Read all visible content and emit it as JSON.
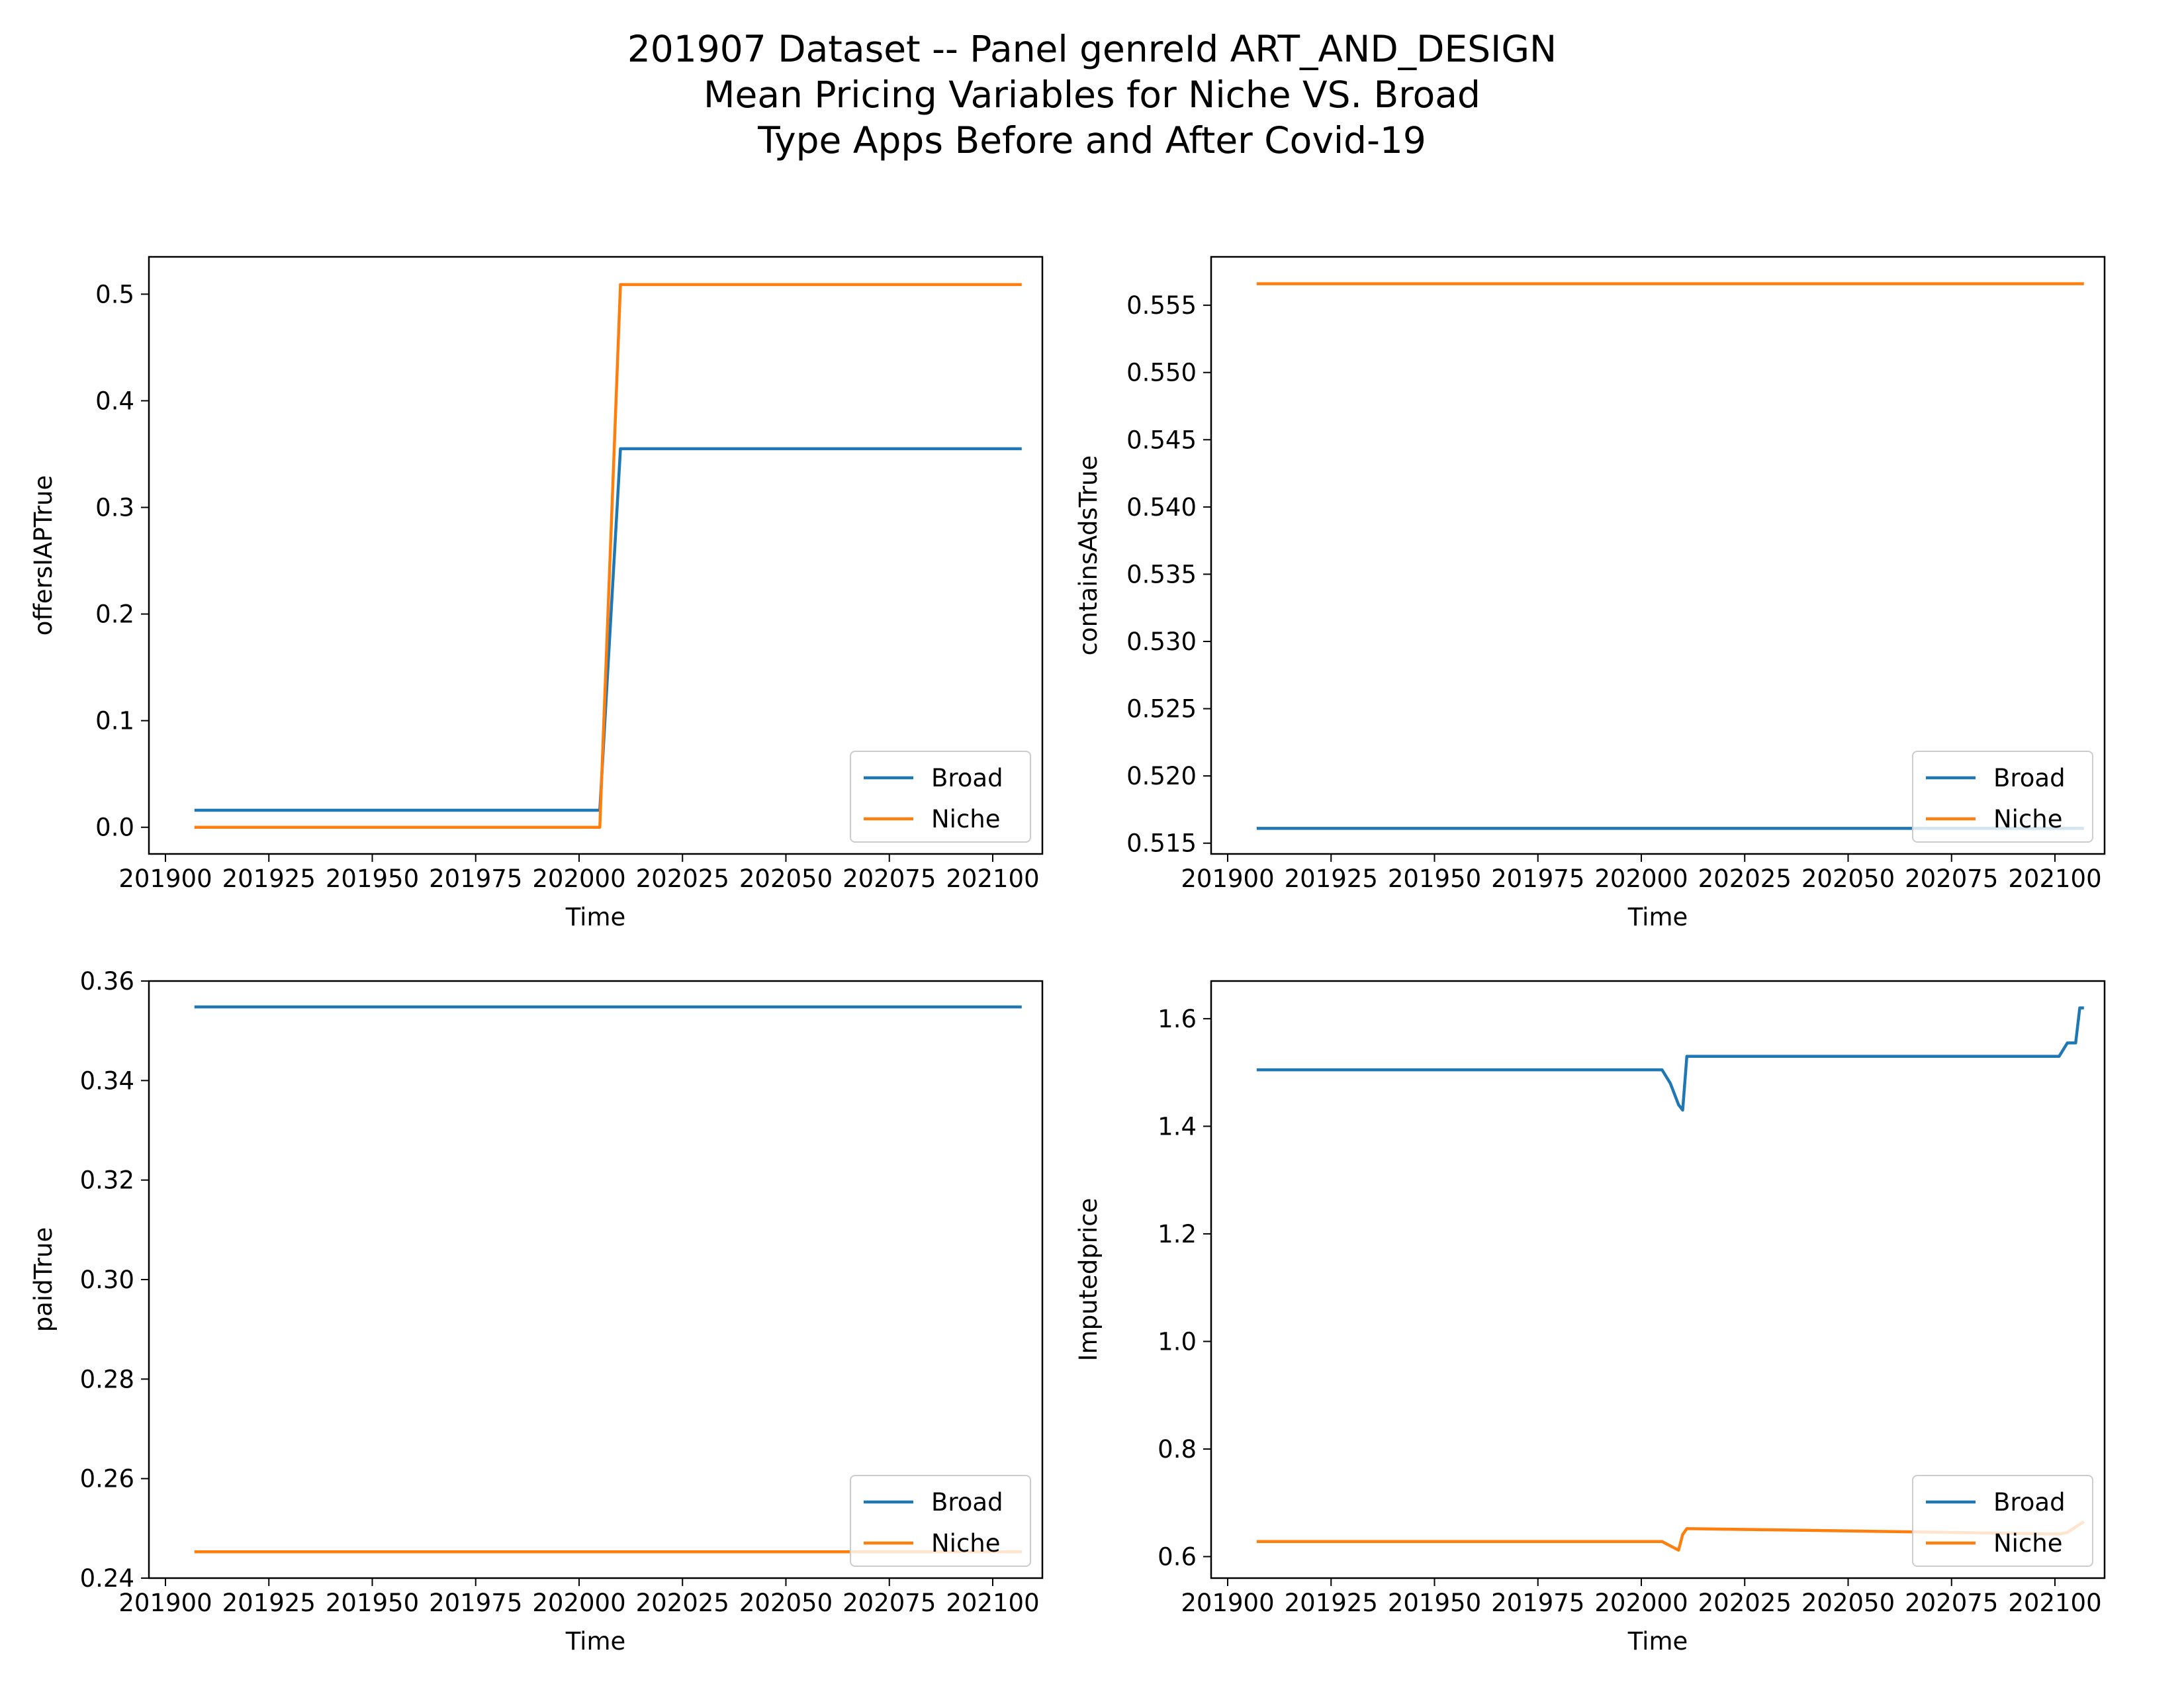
{
  "figure": {
    "title_lines": [
      "201907 Dataset -- Panel genreId ART_AND_DESIGN",
      "Mean Pricing Variables for Niche VS. Broad",
      "Type Apps Before and After Covid-19"
    ]
  },
  "colors": {
    "broad": "#1f77b4",
    "niche": "#ff7f0e",
    "axes": "#000000"
  },
  "chart_data": [
    {
      "type": "line",
      "title": "",
      "xlabel": "Time",
      "ylabel": "offersIAPTrue",
      "xlim": [
        201896,
        202112
      ],
      "ylim": [
        -0.025,
        0.535
      ],
      "xticks": [
        201900,
        201925,
        201950,
        201975,
        202000,
        202025,
        202050,
        202075,
        202100
      ],
      "xtick_labels": [
        "201900",
        "201925",
        "201950",
        "201975",
        "202000",
        "202025",
        "202050",
        "202075",
        "202100"
      ],
      "yticks": [
        0.0,
        0.1,
        0.2,
        0.3,
        0.4,
        0.5
      ],
      "ytick_labels": [
        "0.0",
        "0.1",
        "0.2",
        "0.3",
        "0.4",
        "0.5"
      ],
      "legend": {
        "position": "lower right",
        "entries": [
          "Broad",
          "Niche"
        ]
      },
      "series": [
        {
          "name": "Broad",
          "color": "broad",
          "x": [
            201907,
            202005,
            202010,
            202107
          ],
          "y": [
            0.016,
            0.016,
            0.355,
            0.355
          ]
        },
        {
          "name": "Niche",
          "color": "niche",
          "x": [
            201907,
            202005,
            202010,
            202107
          ],
          "y": [
            0.0,
            0.0,
            0.509,
            0.509
          ]
        }
      ]
    },
    {
      "type": "line",
      "title": "",
      "xlabel": "Time",
      "ylabel": "containsAdsTrue",
      "xlim": [
        201896,
        202112
      ],
      "ylim": [
        0.5142,
        0.5586
      ],
      "xticks": [
        201900,
        201925,
        201950,
        201975,
        202000,
        202025,
        202050,
        202075,
        202100
      ],
      "xtick_labels": [
        "201900",
        "201925",
        "201950",
        "201975",
        "202000",
        "202025",
        "202050",
        "202075",
        "202100"
      ],
      "yticks": [
        0.515,
        0.52,
        0.525,
        0.53,
        0.535,
        0.54,
        0.545,
        0.55,
        0.555
      ],
      "ytick_labels": [
        "0.515",
        "0.520",
        "0.525",
        "0.530",
        "0.535",
        "0.540",
        "0.545",
        "0.550",
        "0.555"
      ],
      "legend": {
        "position": "lower right",
        "entries": [
          "Broad",
          "Niche"
        ]
      },
      "series": [
        {
          "name": "Broad",
          "color": "broad",
          "x": [
            201907,
            202107
          ],
          "y": [
            0.5161,
            0.5161
          ]
        },
        {
          "name": "Niche",
          "color": "niche",
          "x": [
            201907,
            202107
          ],
          "y": [
            0.5566,
            0.5566
          ]
        }
      ]
    },
    {
      "type": "line",
      "title": "",
      "xlabel": "Time",
      "ylabel": "paidTrue",
      "xlim": [
        201896,
        202112
      ],
      "ylim": [
        0.24,
        0.36
      ],
      "xticks": [
        201900,
        201925,
        201950,
        201975,
        202000,
        202025,
        202050,
        202075,
        202100
      ],
      "xtick_labels": [
        "201900",
        "201925",
        "201950",
        "201975",
        "202000",
        "202025",
        "202050",
        "202075",
        "202100"
      ],
      "yticks": [
        0.24,
        0.26,
        0.28,
        0.3,
        0.32,
        0.34,
        0.36
      ],
      "ytick_labels": [
        "0.24",
        "0.26",
        "0.28",
        "0.30",
        "0.32",
        "0.34",
        "0.36"
      ],
      "legend": {
        "position": "lower right",
        "entries": [
          "Broad",
          "Niche"
        ]
      },
      "series": [
        {
          "name": "Broad",
          "color": "broad",
          "x": [
            201907,
            202107
          ],
          "y": [
            0.3548,
            0.3548
          ]
        },
        {
          "name": "Niche",
          "color": "niche",
          "x": [
            201907,
            202107
          ],
          "y": [
            0.2453,
            0.2453
          ]
        }
      ]
    },
    {
      "type": "line",
      "title": "",
      "xlabel": "Time",
      "ylabel": "Imputedprice",
      "xlim": [
        201896,
        202112
      ],
      "ylim": [
        0.56,
        1.67
      ],
      "xticks": [
        201900,
        201925,
        201950,
        201975,
        202000,
        202025,
        202050,
        202075,
        202100
      ],
      "xtick_labels": [
        "201900",
        "201925",
        "201950",
        "201975",
        "202000",
        "202025",
        "202050",
        "202075",
        "202100"
      ],
      "yticks": [
        0.6,
        0.8,
        1.0,
        1.2,
        1.4,
        1.6
      ],
      "ytick_labels": [
        "0.6",
        "0.8",
        "1.0",
        "1.2",
        "1.4",
        "1.6"
      ],
      "legend": {
        "position": "lower right",
        "entries": [
          "Broad",
          "Niche"
        ]
      },
      "series": [
        {
          "name": "Broad",
          "color": "broad",
          "x": [
            201907,
            202005,
            202007,
            202009,
            202010,
            202011,
            202101,
            202103,
            202104,
            202105,
            202106,
            202107
          ],
          "y": [
            1.505,
            1.505,
            1.48,
            1.44,
            1.43,
            1.53,
            1.53,
            1.555,
            1.555,
            1.555,
            1.62,
            1.62
          ]
        },
        {
          "name": "Niche",
          "color": "niche",
          "x": [
            201907,
            202005,
            202007,
            202009,
            202010,
            202011,
            202101,
            202103,
            202105,
            202107
          ],
          "y": [
            0.628,
            0.628,
            0.62,
            0.612,
            0.641,
            0.652,
            0.642,
            0.645,
            0.655,
            0.665
          ]
        }
      ]
    }
  ]
}
